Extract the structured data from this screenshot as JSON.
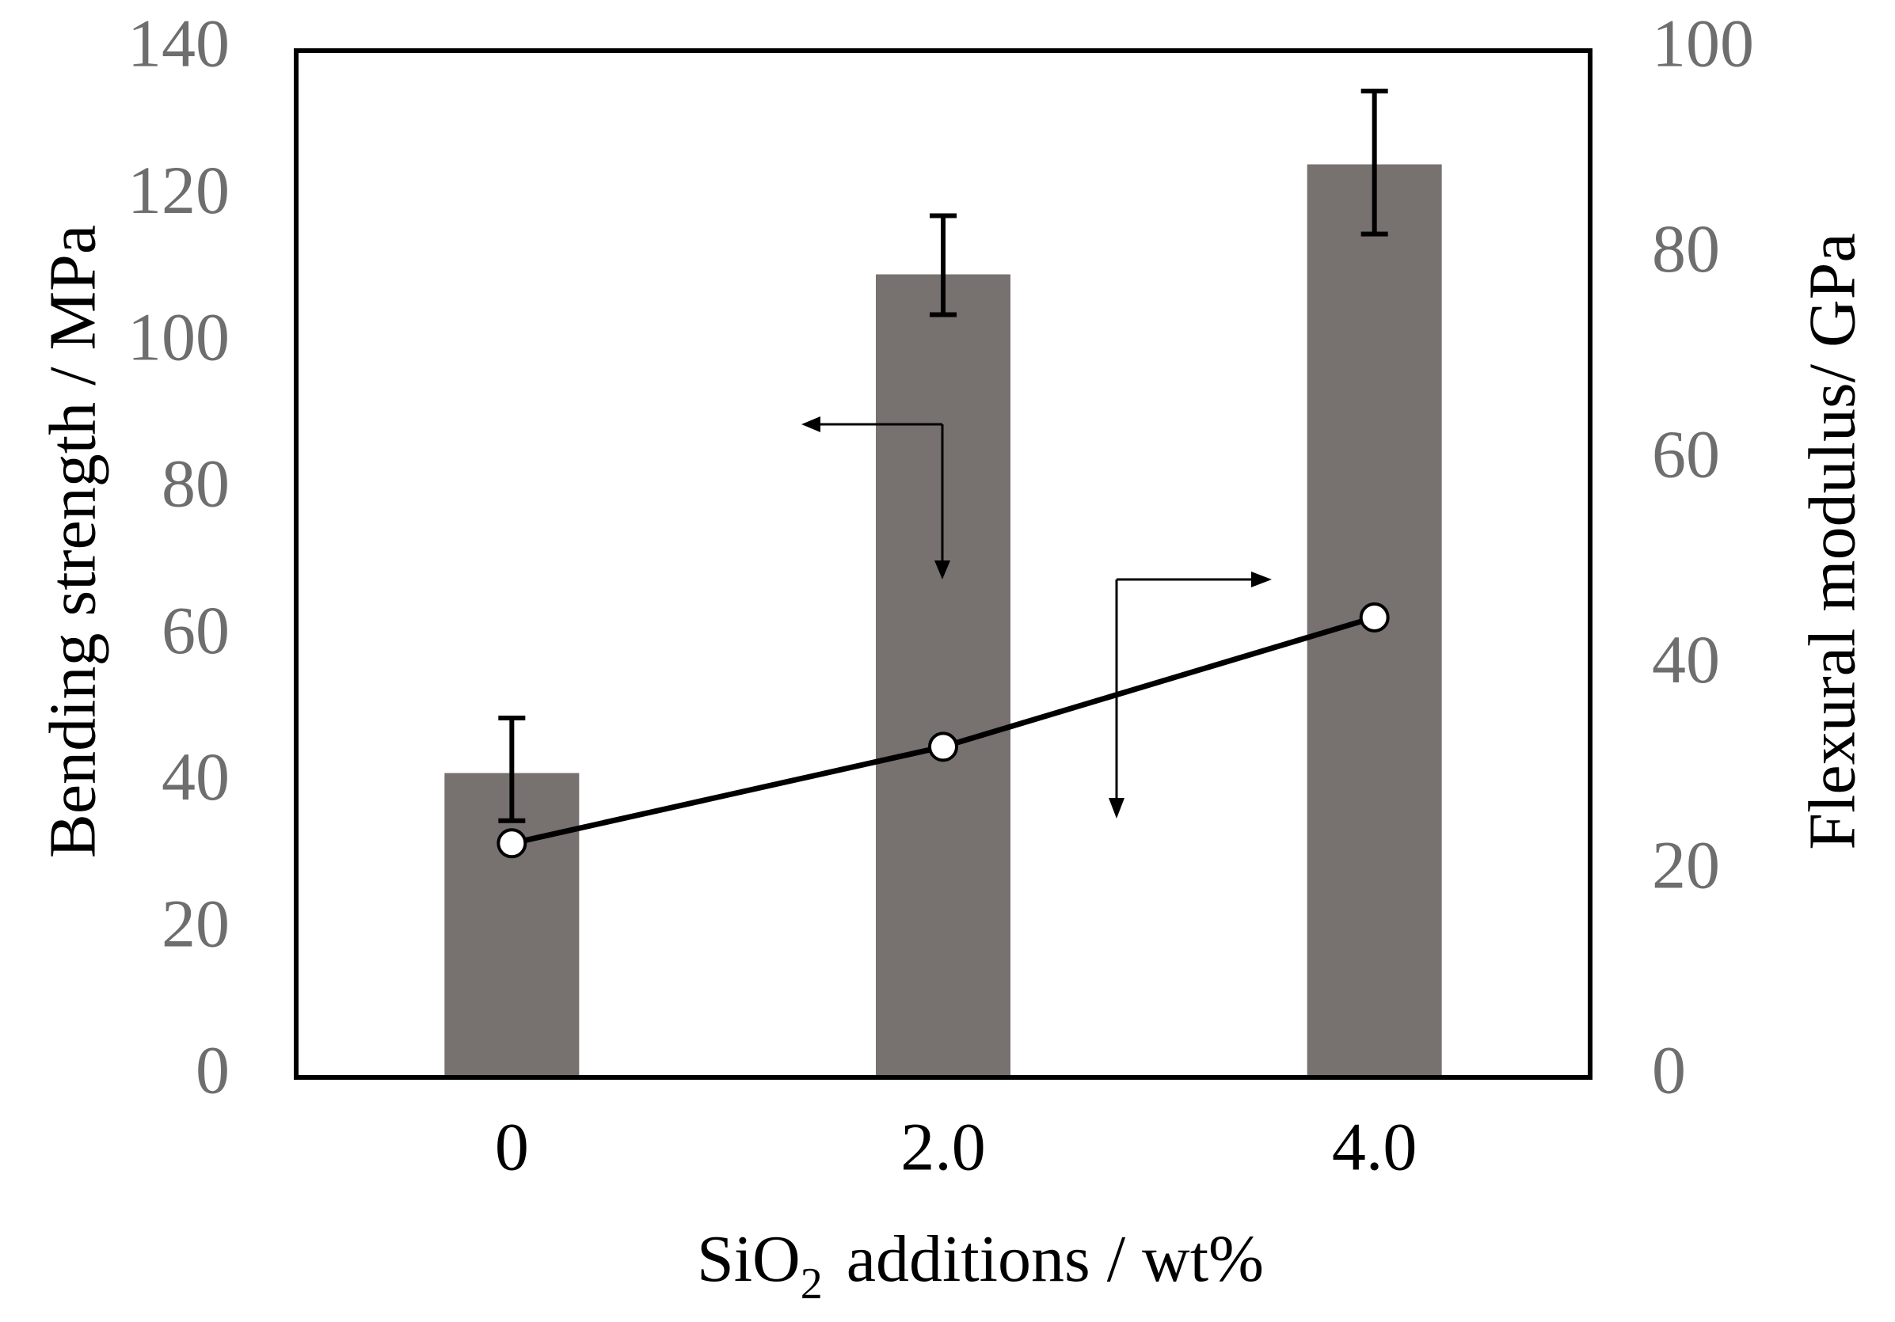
{
  "chart_data": {
    "type": "bar",
    "title": "",
    "xlabel": "SiO2 additions / wt%",
    "xlabel_main": "SiO",
    "xlabel_sub": "2",
    "xlabel_rest": "additions / wt%",
    "categories": [
      "0",
      "2.0",
      "4.0"
    ],
    "left_axis": {
      "label": "Bending strength / MPa",
      "ylim": [
        0,
        140
      ],
      "ticks": [
        "0",
        "20",
        "40",
        "60",
        "80",
        "100",
        "120",
        "140"
      ]
    },
    "right_axis": {
      "label": "Flexural modulus/ GPa",
      "ylim": [
        0,
        100
      ],
      "ticks": [
        "0",
        "20",
        "40",
        "60",
        "80",
        "100"
      ]
    },
    "series": [
      {
        "name": "Bending strength",
        "type": "bar",
        "axis": "left",
        "values": [
          41.5,
          109.5,
          124.5
        ],
        "error_low": [
          35,
          104,
          115
        ],
        "error_high": [
          49,
          117.5,
          134.5
        ],
        "color": "#77716f"
      },
      {
        "name": "Flexural modulus",
        "type": "line",
        "axis": "right",
        "values": [
          22.8,
          32.2,
          44.8
        ],
        "marker": "open-circle",
        "color": "#000000"
      }
    ],
    "annotations": [
      {
        "type": "axis-pointer",
        "points_to": "left",
        "series": "Bending strength"
      },
      {
        "type": "axis-pointer",
        "points_to": "right",
        "series": "Flexural modulus"
      }
    ],
    "grid": false,
    "legend": "none"
  }
}
